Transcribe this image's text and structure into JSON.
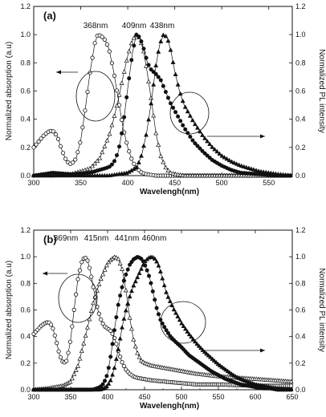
{
  "chart_data": [
    {
      "type": "line",
      "panel_label": "(a)",
      "xlabel": "Wavelengh(nm)",
      "ylabel": "Normalized absorption (a.u)",
      "y2label": "Normalized PL intensity",
      "xlim": [
        300,
        575
      ],
      "ylim": [
        0,
        1.2
      ],
      "y2lim": [
        0,
        1.2
      ],
      "x_ticks": [
        300,
        350,
        400,
        450,
        500,
        550
      ],
      "y_ticks": [
        0.0,
        0.2,
        0.4,
        0.6,
        0.8,
        1.0,
        1.2
      ],
      "peak_labels": [
        "368nm",
        "409nm",
        "438nm"
      ],
      "annotations": [
        {
          "type": "ellipse-arrow",
          "points_to": "left axis"
        },
        {
          "type": "ellipse-arrow",
          "points_to": "right axis"
        }
      ],
      "series": [
        {
          "marker": "open-circle",
          "axis": "left",
          "x": [
            300,
            305,
            310,
            315,
            320,
            325,
            330,
            335,
            340,
            345,
            350,
            355,
            360,
            365,
            368,
            372,
            376,
            380,
            385,
            390,
            395,
            400,
            405,
            410,
            415,
            420,
            430,
            440,
            450,
            460,
            480,
            500,
            520,
            540,
            560,
            575
          ],
          "y": [
            0.2,
            0.24,
            0.28,
            0.31,
            0.32,
            0.28,
            0.18,
            0.1,
            0.08,
            0.12,
            0.25,
            0.48,
            0.74,
            0.94,
            1.0,
            0.99,
            0.96,
            0.9,
            0.74,
            0.54,
            0.34,
            0.2,
            0.1,
            0.05,
            0.02,
            0.01,
            0.0,
            0.0,
            0.0,
            0.0,
            0.0,
            0.0,
            0.0,
            0.0,
            0.0,
            0.0
          ]
        },
        {
          "marker": "open-triangle",
          "axis": "left",
          "x": [
            300,
            320,
            340,
            360,
            370,
            380,
            385,
            390,
            395,
            400,
            405,
            409,
            413,
            417,
            421,
            425,
            430,
            435,
            440,
            445,
            450,
            460,
            480,
            500,
            520,
            540,
            560,
            575
          ],
          "y": [
            0.0,
            0.0,
            0.01,
            0.05,
            0.12,
            0.28,
            0.4,
            0.54,
            0.7,
            0.85,
            0.96,
            1.0,
            0.97,
            0.88,
            0.72,
            0.54,
            0.3,
            0.14,
            0.06,
            0.02,
            0.01,
            0.0,
            0.0,
            0.0,
            0.0,
            0.0,
            0.0,
            0.0
          ]
        },
        {
          "marker": "filled-circle",
          "axis": "right",
          "x": [
            300,
            320,
            340,
            360,
            370,
            380,
            385,
            390,
            395,
            400,
            405,
            409,
            413,
            417,
            421,
            425,
            430,
            435,
            440,
            445,
            450,
            460,
            470,
            480,
            490,
            500,
            510,
            520,
            540,
            560,
            575
          ],
          "y": [
            0.0,
            0.02,
            0.01,
            0.02,
            0.04,
            0.06,
            0.09,
            0.17,
            0.35,
            0.62,
            0.87,
            1.0,
            0.98,
            0.9,
            0.8,
            0.75,
            0.72,
            0.68,
            0.6,
            0.52,
            0.46,
            0.34,
            0.24,
            0.17,
            0.11,
            0.07,
            0.04,
            0.02,
            0.01,
            0.0,
            0.0
          ]
        },
        {
          "marker": "filled-triangle",
          "axis": "right",
          "x": [
            300,
            380,
            400,
            410,
            415,
            420,
            425,
            430,
            434,
            438,
            442,
            446,
            450,
            455,
            460,
            470,
            480,
            490,
            500,
            510,
            520,
            530,
            540,
            550,
            560,
            575
          ],
          "y": [
            0.0,
            0.0,
            0.02,
            0.06,
            0.15,
            0.3,
            0.52,
            0.78,
            0.93,
            1.0,
            0.98,
            0.88,
            0.74,
            0.6,
            0.5,
            0.38,
            0.28,
            0.2,
            0.14,
            0.1,
            0.07,
            0.05,
            0.03,
            0.02,
            0.01,
            0.0
          ]
        }
      ]
    },
    {
      "type": "line",
      "panel_label": "(b)",
      "xlabel": "Wavelengh(nm)",
      "ylabel": "Normalized absorption (a.u)",
      "y2label": "Normalized PL intensity",
      "xlim": [
        300,
        650
      ],
      "ylim": [
        0,
        1.2
      ],
      "y2lim": [
        0,
        1.2
      ],
      "x_ticks": [
        300,
        350,
        400,
        450,
        500,
        550,
        600,
        650
      ],
      "y_ticks": [
        0.0,
        0.2,
        0.4,
        0.6,
        0.8,
        1.0,
        1.2
      ],
      "peak_labels": [
        "369nm",
        "415nm",
        "441nm",
        "460nm"
      ],
      "annotations": [
        {
          "type": "ellipse-arrow",
          "points_to": "left axis"
        },
        {
          "type": "ellipse-arrow",
          "points_to": "right axis"
        }
      ],
      "series": [
        {
          "marker": "open-circle",
          "axis": "left",
          "x": [
            300,
            305,
            310,
            315,
            320,
            325,
            330,
            335,
            340,
            345,
            350,
            355,
            360,
            365,
            369,
            373,
            377,
            381,
            385,
            390,
            395,
            400,
            405,
            410,
            415,
            420,
            425,
            430,
            435,
            440,
            450,
            460,
            480,
            500,
            520,
            550,
            600,
            650
          ],
          "y": [
            0.42,
            0.45,
            0.48,
            0.5,
            0.51,
            0.48,
            0.38,
            0.26,
            0.2,
            0.22,
            0.38,
            0.62,
            0.84,
            0.96,
            1.0,
            0.97,
            0.88,
            0.76,
            0.64,
            0.54,
            0.48,
            0.46,
            0.44,
            0.38,
            0.28,
            0.2,
            0.15,
            0.12,
            0.1,
            0.09,
            0.08,
            0.07,
            0.06,
            0.05,
            0.04,
            0.04,
            0.03,
            0.03
          ]
        },
        {
          "marker": "open-triangle",
          "axis": "left",
          "x": [
            300,
            320,
            340,
            350,
            360,
            370,
            380,
            390,
            400,
            405,
            410,
            415,
            420,
            425,
            430,
            435,
            440,
            445,
            450,
            460,
            480,
            500,
            520,
            550,
            600,
            650
          ],
          "y": [
            0.0,
            0.01,
            0.03,
            0.06,
            0.18,
            0.4,
            0.64,
            0.82,
            0.95,
            0.98,
            1.0,
            0.98,
            0.9,
            0.74,
            0.54,
            0.38,
            0.28,
            0.22,
            0.2,
            0.18,
            0.16,
            0.14,
            0.12,
            0.1,
            0.08,
            0.06
          ]
        },
        {
          "marker": "filled-circle",
          "axis": "right",
          "x": [
            300,
            380,
            385,
            390,
            395,
            400,
            405,
            410,
            415,
            420,
            425,
            430,
            435,
            441,
            447,
            452,
            457,
            462,
            467,
            472,
            478,
            485,
            492,
            500,
            510,
            520,
            530,
            540,
            550,
            560,
            570,
            580,
            590,
            600,
            610,
            620,
            630,
            640,
            650
          ],
          "y": [
            0.0,
            0.0,
            0.01,
            0.02,
            0.05,
            0.12,
            0.28,
            0.48,
            0.66,
            0.78,
            0.87,
            0.94,
            0.98,
            1.0,
            0.98,
            0.92,
            0.84,
            0.72,
            0.6,
            0.52,
            0.46,
            0.4,
            0.36,
            0.32,
            0.26,
            0.22,
            0.18,
            0.14,
            0.11,
            0.08,
            0.06,
            0.04,
            0.03,
            0.02,
            0.01,
            0.01,
            0.0,
            0.0,
            0.0
          ]
        },
        {
          "marker": "filled-triangle",
          "axis": "right",
          "x": [
            300,
            390,
            395,
            400,
            405,
            410,
            415,
            420,
            425,
            430,
            435,
            440,
            445,
            450,
            455,
            460,
            465,
            470,
            475,
            480,
            490,
            500,
            510,
            520,
            530,
            540,
            550,
            560,
            570,
            580,
            590,
            600,
            610,
            620,
            630,
            650
          ],
          "y": [
            0.0,
            0.0,
            0.01,
            0.03,
            0.08,
            0.18,
            0.32,
            0.48,
            0.6,
            0.7,
            0.78,
            0.84,
            0.9,
            0.96,
            0.99,
            1.0,
            0.98,
            0.92,
            0.82,
            0.72,
            0.6,
            0.5,
            0.42,
            0.35,
            0.29,
            0.24,
            0.19,
            0.15,
            0.11,
            0.08,
            0.06,
            0.04,
            0.03,
            0.02,
            0.01,
            0.0
          ]
        }
      ]
    }
  ]
}
